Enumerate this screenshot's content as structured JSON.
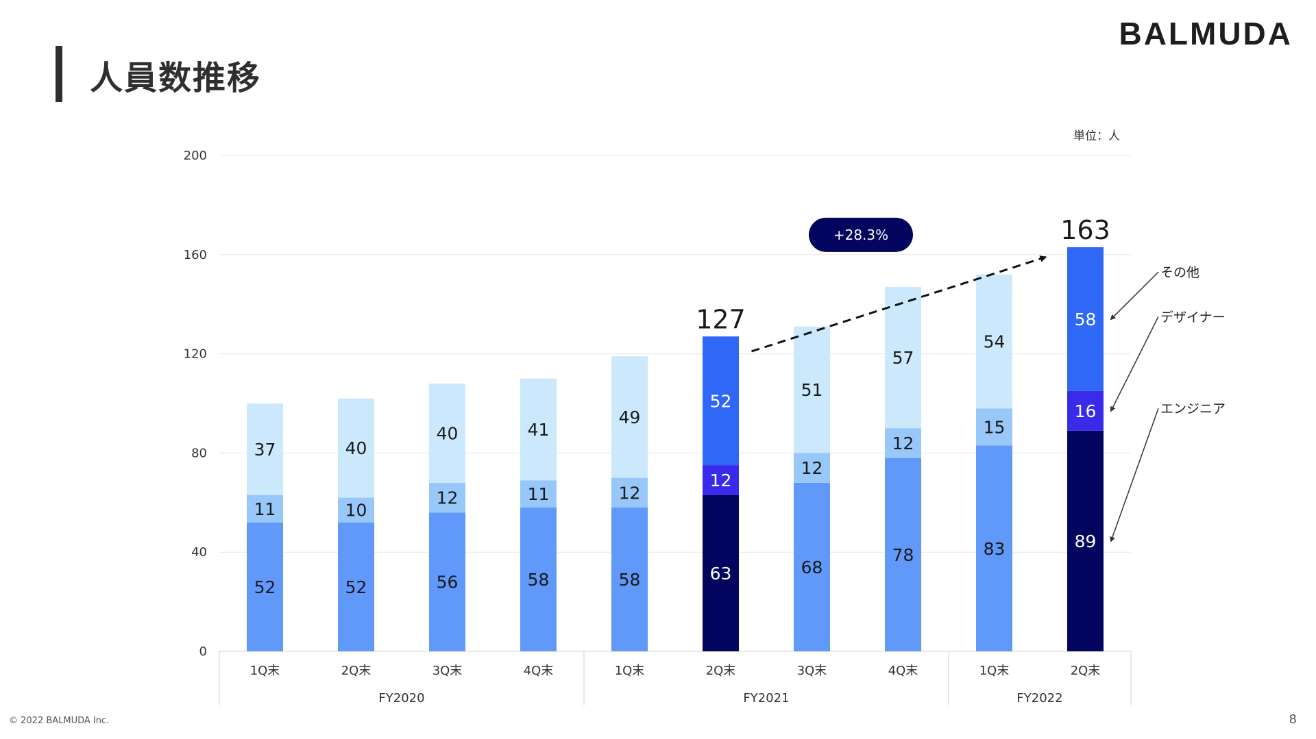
{
  "header": {
    "title": "人員数推移",
    "logo": "BALMUDA",
    "unit": "単位：人"
  },
  "footer": {
    "copyright": "© 2022 BALMUDA Inc.",
    "page": "8"
  },
  "colors": {
    "engineer_highlight": "#03055e",
    "designer_highlight": "#3a2bea",
    "other_highlight": "#2f67f6",
    "engineer": "#6199fa",
    "designer": "#98c7fa",
    "other": "#cbe8fc",
    "grid": "#e6e6e6",
    "growth_badge": "#03055e"
  },
  "chart_data": {
    "type": "bar",
    "stacked": true,
    "categories": [
      "1Q末",
      "2Q末",
      "3Q末",
      "4Q末",
      "1Q末",
      "2Q末",
      "3Q末",
      "4Q末",
      "1Q末",
      "2Q末"
    ],
    "groups": [
      {
        "label": "FY2020",
        "count": 4
      },
      {
        "label": "FY2021",
        "count": 4
      },
      {
        "label": "FY2022",
        "count": 2
      }
    ],
    "series": [
      {
        "name": "エンジニア",
        "values": [
          52,
          52,
          56,
          58,
          58,
          63,
          68,
          78,
          83,
          89
        ]
      },
      {
        "name": "デザイナー",
        "values": [
          11,
          10,
          12,
          11,
          12,
          12,
          12,
          12,
          15,
          16
        ]
      },
      {
        "name": "その他",
        "values": [
          37,
          40,
          40,
          41,
          49,
          52,
          51,
          57,
          54,
          58
        ]
      }
    ],
    "highlighted_indices": [
      5,
      9
    ],
    "totals_shown": [
      {
        "index": 5,
        "value": "127"
      },
      {
        "index": 9,
        "value": "163"
      }
    ],
    "growth_label": "+28.3%",
    "ylim": [
      0,
      200
    ],
    "yticks": [
      0,
      40,
      80,
      120,
      160,
      200
    ],
    "legend": [
      "その他",
      "デザイナー",
      "エンジニア"
    ],
    "legend_position": "right",
    "grid": true
  }
}
